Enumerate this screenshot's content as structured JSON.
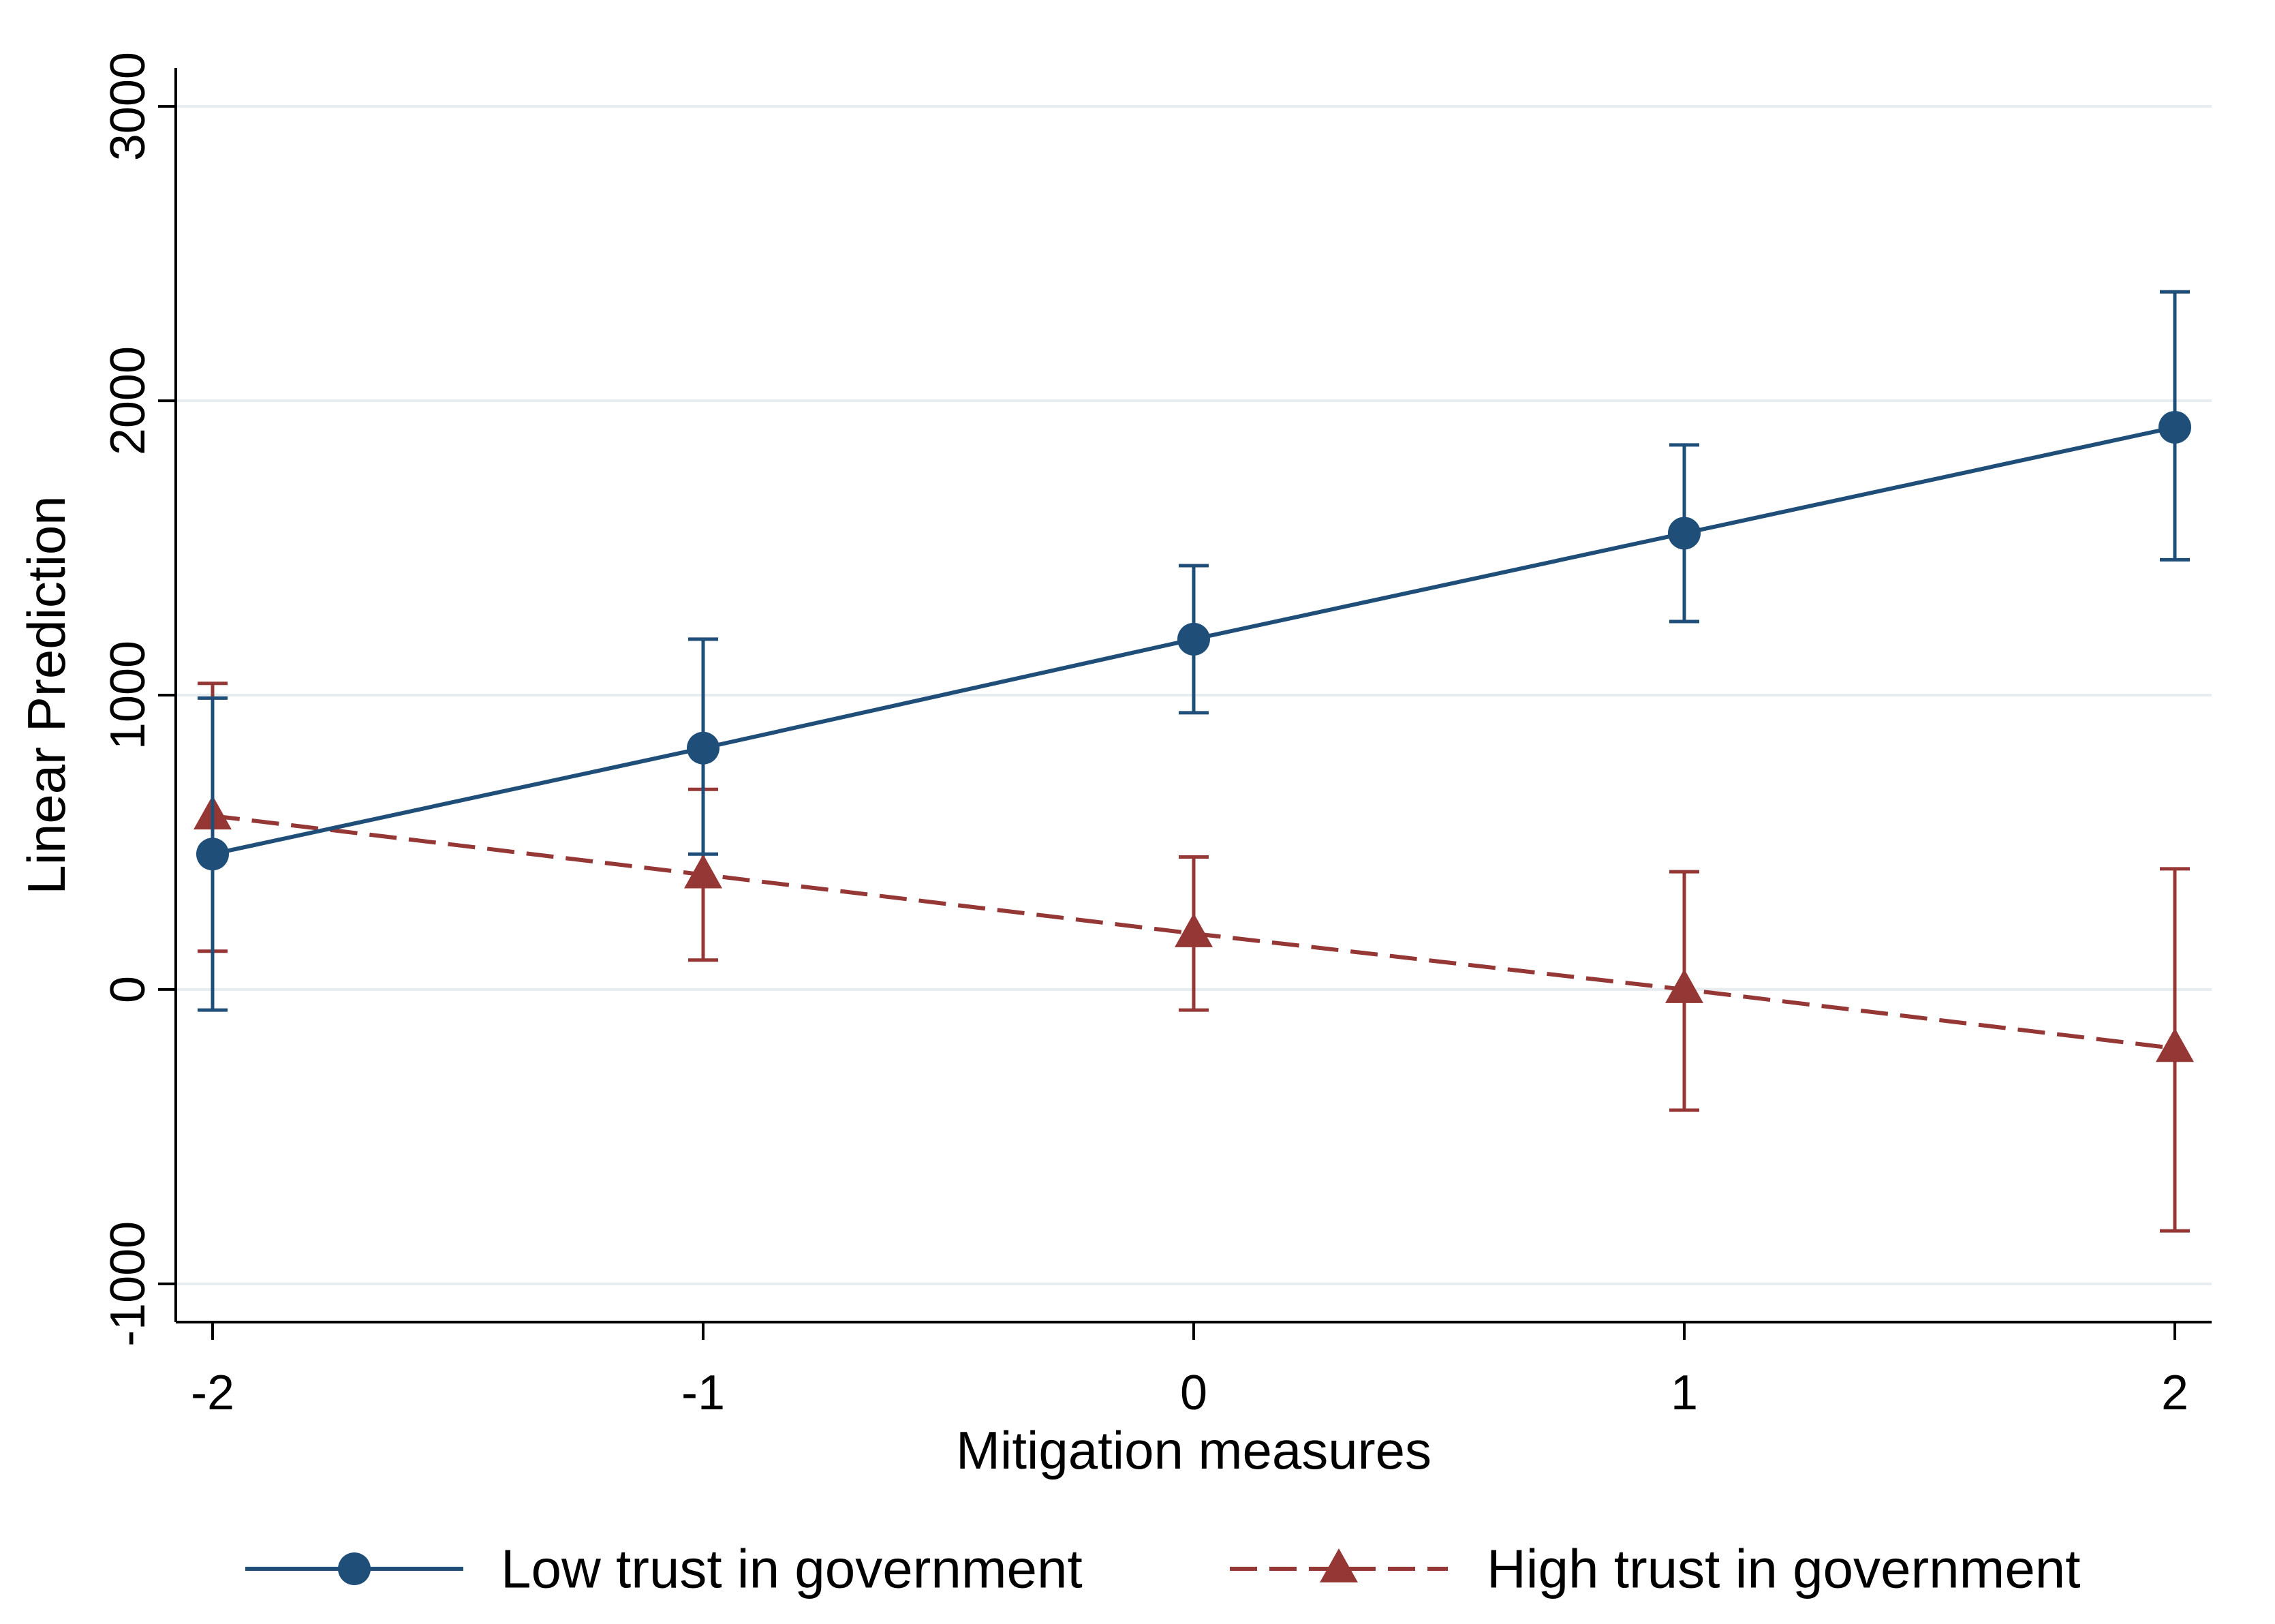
{
  "chart_data": {
    "type": "line",
    "title": "",
    "xlabel": "Mitigation measures",
    "ylabel": "Linear Prediction",
    "x": [
      -2,
      -1,
      0,
      1,
      2
    ],
    "x_ticks": [
      -2,
      -1,
      0,
      1,
      2
    ],
    "x_tick_labels": [
      "-2",
      "-1",
      "0",
      "1",
      "2"
    ],
    "y_ticks": [
      -1000,
      0,
      1000,
      2000,
      3000
    ],
    "y_tick_labels": [
      "-1000",
      "0",
      "1000",
      "2000",
      "3000"
    ],
    "xlim": [
      -2.075,
      2.075
    ],
    "ylim": [
      -1130,
      3130
    ],
    "grid": true,
    "legend_position": "bottom",
    "series": [
      {
        "name": "Low trust in government",
        "color": "#1f4e79",
        "line_style": "solid",
        "marker": "circle",
        "values": [
          460,
          820,
          1190,
          1550,
          1910
        ],
        "ci_low": [
          -70,
          460,
          940,
          1250,
          1460
        ],
        "ci_high": [
          990,
          1190,
          1440,
          1850,
          2370
        ]
      },
      {
        "name": "High trust in government",
        "color": "#953735",
        "line_style": "dashed",
        "marker": "triangle",
        "values": [
          590,
          390,
          190,
          0,
          -200
        ],
        "ci_low": [
          130,
          100,
          -70,
          -410,
          -820
        ],
        "ci_high": [
          1040,
          680,
          450,
          400,
          410
        ]
      }
    ]
  }
}
